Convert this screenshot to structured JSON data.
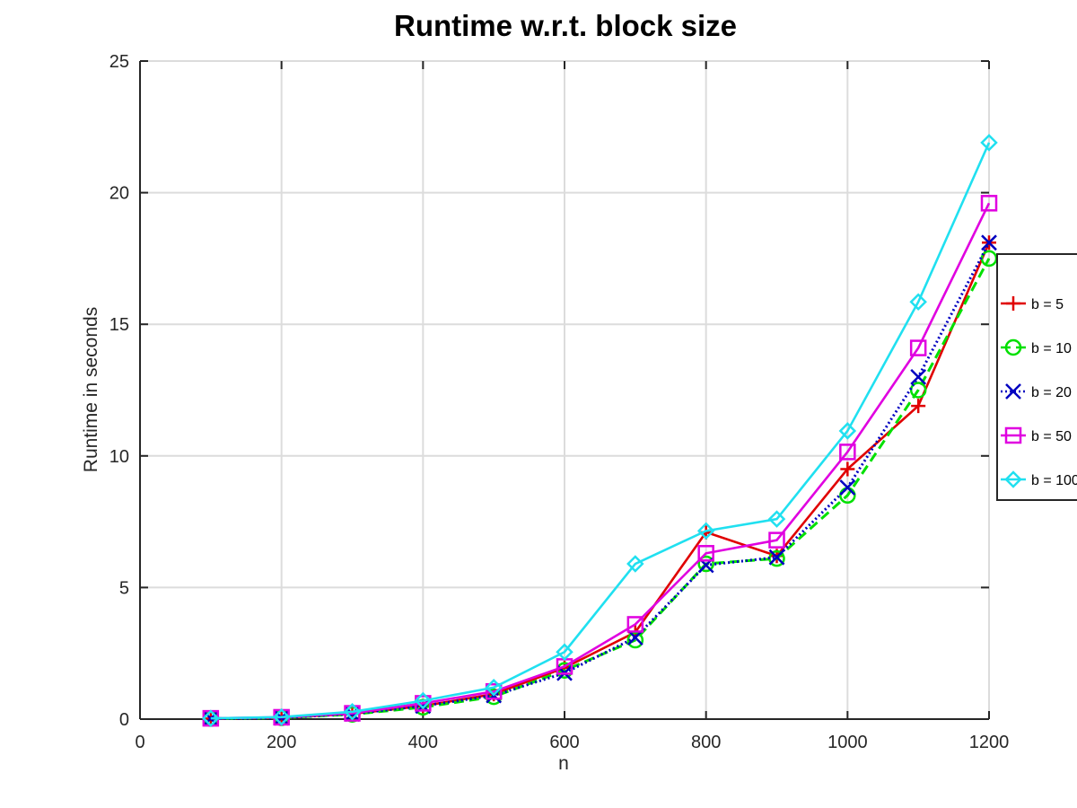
{
  "chart_data": {
    "type": "line",
    "title": "Runtime w.r.t. block size",
    "xlabel": "n",
    "ylabel": "Runtime in seconds",
    "xlim": [
      0,
      1200
    ],
    "ylim": [
      0,
      25
    ],
    "xticks": [
      0,
      200,
      400,
      600,
      800,
      1000,
      1200
    ],
    "yticks": [
      0,
      5,
      10,
      15,
      20,
      25
    ],
    "grid": true,
    "legend_position": "right",
    "x": [
      100,
      200,
      300,
      400,
      500,
      600,
      700,
      800,
      900,
      1000,
      1100,
      1200
    ],
    "series": [
      {
        "name": "b = 5",
        "color": "#e00000",
        "marker": "plus",
        "dash": "solid",
        "values": [
          0.02,
          0.05,
          0.2,
          0.5,
          0.95,
          1.95,
          3.3,
          7.1,
          6.2,
          9.5,
          11.9,
          18.1
        ]
      },
      {
        "name": "b = 10",
        "color": "#00e000",
        "marker": "circle",
        "dash": "dashed",
        "values": [
          0.02,
          0.05,
          0.18,
          0.45,
          0.85,
          1.85,
          3.0,
          5.9,
          6.1,
          8.5,
          12.5,
          17.5
        ]
      },
      {
        "name": "b = 20",
        "color": "#0000c0",
        "marker": "x",
        "dash": "dotted",
        "values": [
          0.02,
          0.05,
          0.2,
          0.5,
          0.9,
          1.75,
          3.1,
          5.85,
          6.15,
          8.8,
          13.0,
          18.1
        ]
      },
      {
        "name": "b = 50",
        "color": "#e000e0",
        "marker": "square",
        "dash": "solid",
        "values": [
          0.03,
          0.07,
          0.22,
          0.6,
          1.05,
          2.0,
          3.6,
          6.3,
          6.8,
          10.15,
          14.1,
          19.6
        ]
      },
      {
        "name": "b = 100",
        "color": "#20e0f0",
        "marker": "diamond",
        "dash": "solid",
        "values": [
          0.03,
          0.08,
          0.28,
          0.7,
          1.2,
          2.55,
          5.9,
          7.15,
          7.6,
          10.95,
          15.85,
          21.9
        ]
      }
    ]
  }
}
